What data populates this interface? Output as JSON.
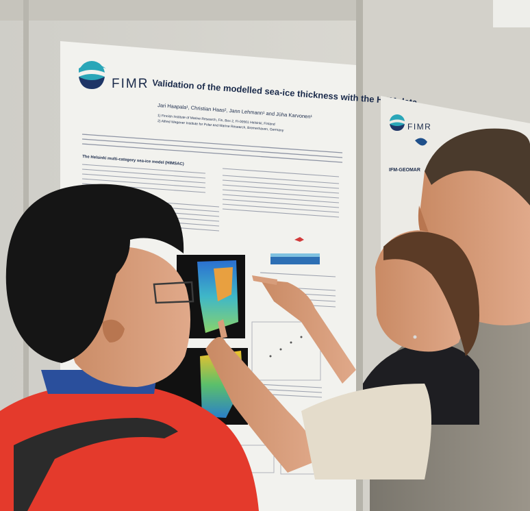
{
  "poster_main": {
    "logo_text": "FIMR",
    "title": "Validation of the modelled sea-ice thickness with the HEM data",
    "authors": "Jari Haapala¹, Christian Haas², Jann Lehmann¹ and Jüha Karvonen¹",
    "affiliation_1": "1) Finnish Institute of Marine Research, Fin, Box 2, FI-00561 Helsinki, Finland",
    "affiliation_2": "2) Alfred Wegener Institute for Polar and Marine Research, Bremerhaven, Germany",
    "section_heading": "The Helsinki multi-category sea-ice model (HIMSAC)"
  },
  "poster_right": {
    "logo_text": "FIMR",
    "partner_logo_text": "IFM-GEOMAR"
  },
  "colors": {
    "wall": "#d9d8d2",
    "poster_paper": "#f2f2ee",
    "logo_teal": "#2aa6b8",
    "logo_navy": "#1e3566",
    "title_navy": "#1a2a4a",
    "shirt_red": "#e43a2c",
    "jacket_gray": "#8a857b"
  }
}
